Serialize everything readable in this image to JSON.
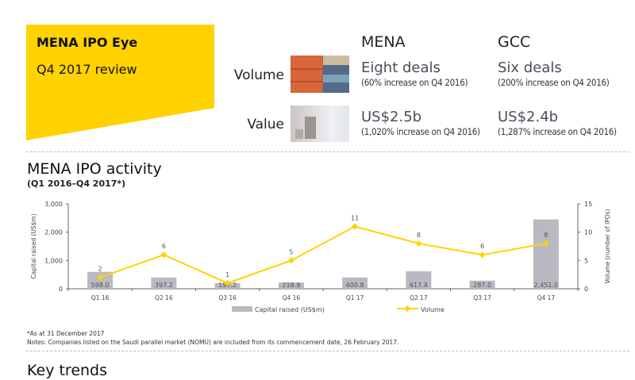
{
  "header": {
    "title": "MENA IPO Eye",
    "subtitle": "Q4 2017 review",
    "brand_color": "#FFD200"
  },
  "summary": {
    "columns": [
      "MENA",
      "GCC"
    ],
    "rows": [
      {
        "label": "Volume",
        "image": "shipping-containers-photo",
        "cells": [
          {
            "main": "Eight deals",
            "detail": "(60% increase on Q4 2016)"
          },
          {
            "main": "Six deals",
            "detail": "(200% increase on Q4 2016)"
          }
        ]
      },
      {
        "label": "Value",
        "image": "coins-photo",
        "cells": [
          {
            "main": "US$2.5b",
            "detail": "(1,020% increase on Q4 2016)"
          },
          {
            "main": "US$2.4b",
            "detail": "(1,287% increase on Q4 2016)"
          }
        ]
      }
    ]
  },
  "section": {
    "title": "MENA IPO activity",
    "subtitle": "(Q1 2016–Q4 2017*)"
  },
  "chart_data": {
    "type": "bar+line",
    "categories": [
      "Q1 16",
      "Q2 16",
      "Q3 16",
      "Q4 16",
      "Q1 17",
      "Q2 17",
      "Q3 17",
      "Q4 17"
    ],
    "series": [
      {
        "name": "Capital raised (US$m)",
        "type": "bar",
        "axis": "left",
        "color": "#b9b9c2",
        "values": [
          598.0,
          397.2,
          197.2,
          218.9,
          400.8,
          617.4,
          287.0,
          2451.0
        ],
        "labels": [
          "598.0",
          "397.2",
          "197.2",
          "218.9",
          "400.8",
          "617.4",
          "287.0",
          "2,451.0"
        ]
      },
      {
        "name": "Volume",
        "type": "line",
        "axis": "right",
        "color": "#FFD200",
        "values": [
          2,
          6,
          1,
          5,
          11,
          8,
          6,
          8
        ]
      }
    ],
    "ylabel": "Capital raised (US$m)",
    "y2label": "Volume (number of IPOs)",
    "ylim": [
      0,
      3000
    ],
    "y2lim": [
      0,
      15
    ],
    "yticks": [
      "0",
      "1,000",
      "2,000",
      "3,000"
    ],
    "y2ticks": [
      "0",
      "5",
      "10",
      "15"
    ],
    "legend": "bottom",
    "grid": false
  },
  "notes": {
    "asof": "*As at 31 December 2017",
    "text": "Notes: Companies listed on the Saudi parallel market (NOMU) are included from its commencement date, 26 February 2017."
  },
  "next_section": "Key trends"
}
